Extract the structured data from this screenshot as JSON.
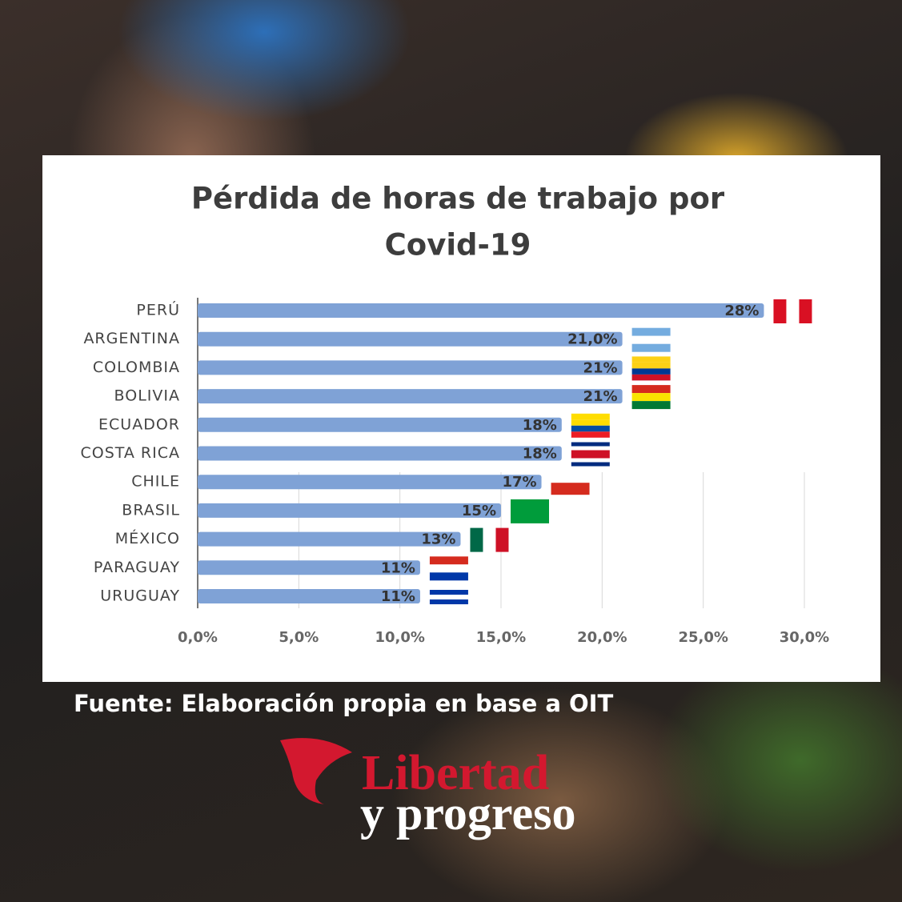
{
  "chart_data": {
    "type": "bar",
    "orientation": "horizontal",
    "title": [
      "Pérdida de horas de trabajo por",
      "Covid-19"
    ],
    "categories": [
      "PERÚ",
      "ARGENTINA",
      "COLOMBIA",
      "BOLIVIA",
      "ECUADOR",
      "COSTA RICA",
      "CHILE",
      "BRASIL",
      "MÉXICO",
      "PARAGUAY",
      "URUGUAY"
    ],
    "values": [
      28,
      21,
      21,
      21,
      18,
      18,
      17,
      15,
      13,
      11,
      11
    ],
    "value_labels": [
      "28%",
      "21,0%",
      "21%",
      "21%",
      "18%",
      "18%",
      "17%",
      "15%",
      "13%",
      "11%",
      "11%"
    ],
    "color": "#7fa2d6",
    "xlim": [
      0,
      30
    ],
    "xticks": [
      {
        "value": 0,
        "label": "0,0%"
      },
      {
        "value": 5,
        "label": "5,0%"
      },
      {
        "value": 10,
        "label": "10,0%"
      },
      {
        "value": 15,
        "label": "15,0%"
      },
      {
        "value": 20,
        "label": "20,0%"
      },
      {
        "value": 25,
        "label": "25,0%"
      },
      {
        "value": 30,
        "label": "30,0%"
      }
    ],
    "grid": true
  },
  "source": "Fuente: Elaboración propia en base a OIT",
  "logo": {
    "line1": "Libertad",
    "line2": "y progreso"
  }
}
